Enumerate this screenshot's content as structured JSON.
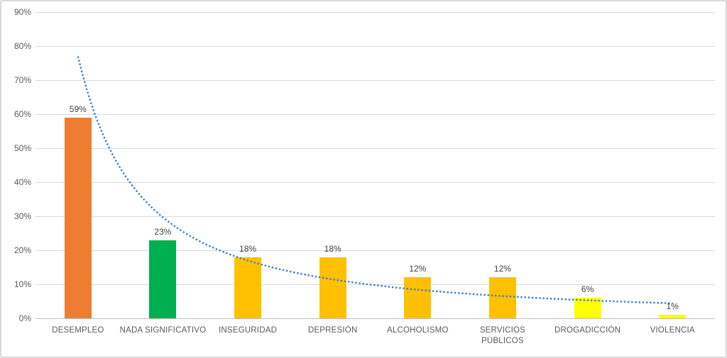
{
  "chart_data": {
    "type": "bar",
    "title": "",
    "xlabel": "",
    "ylabel": "",
    "categories": [
      "DESEMPLEO",
      "NADA SIGNIFICATIVO",
      "INSEGURIDAD",
      "DEPRESIÓN",
      "ALCOHOLISMO",
      "SERVICIOS PÚBLICOS",
      "DROGADICCIÓN",
      "VIOLENCIA"
    ],
    "values": [
      59,
      23,
      18,
      18,
      12,
      12,
      6,
      1
    ],
    "data_labels": [
      "59%",
      "23%",
      "18%",
      "18%",
      "12%",
      "12%",
      "6%",
      "1%"
    ],
    "bar_colors": [
      "#ED7D31",
      "#00B050",
      "#FFC000",
      "#FFC000",
      "#FFC000",
      "#FFC000",
      "#FFFF00",
      "#FFFF00"
    ],
    "ylim": [
      0,
      90
    ],
    "y_ticks": [
      "0%",
      "10%",
      "20%",
      "30%",
      "40%",
      "50%",
      "60%",
      "70%",
      "80%",
      "90%"
    ],
    "y_tick_step": 10,
    "grid": true,
    "legend": false,
    "trendline": {
      "type": "power",
      "style": "dotted",
      "color": "#3B7CC4",
      "coefficient": 77,
      "exponent": -1.376,
      "start_value_pct": 77,
      "end_value_pct": 4.4
    }
  },
  "colors": {
    "background": "#FFFFFF",
    "border": "#D9D9D9",
    "gridline": "#D9D9D9",
    "axis_line": "#BFBFBF",
    "tick_label": "#595959",
    "data_label": "#404040"
  }
}
